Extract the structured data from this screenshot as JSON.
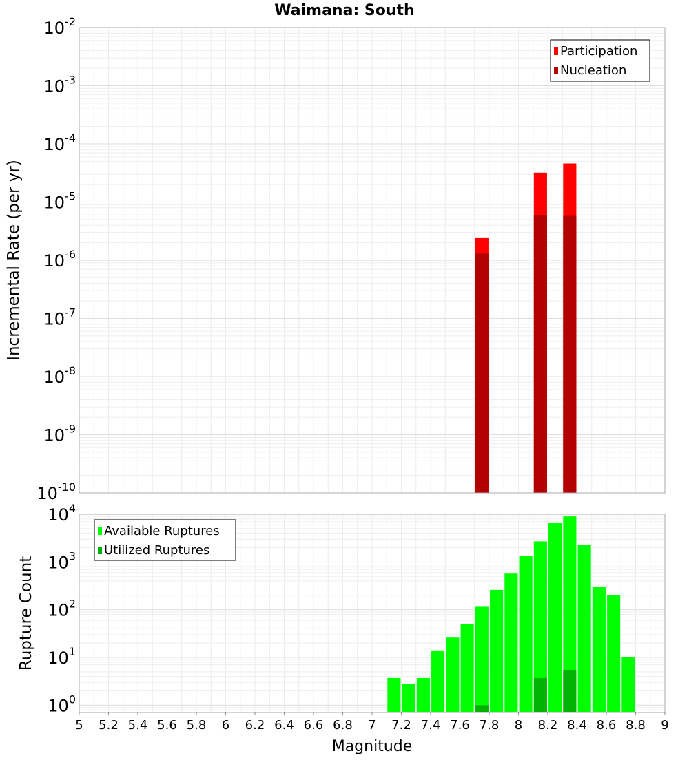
{
  "chart_data": [
    {
      "type": "bar",
      "title": "Waimana: South",
      "xlabel": "",
      "ylabel": "Incremental Rate (per yr)",
      "xlim": [
        5,
        9
      ],
      "ylim": [
        1e-10,
        0.01
      ],
      "yscale": "log",
      "grid": true,
      "legend_position": "top-right",
      "y_tick_exponents": [
        "-2",
        "-3",
        "-4",
        "-5",
        "-6",
        "-7",
        "-8",
        "-9",
        "-10"
      ],
      "series": [
        {
          "name": "Participation",
          "color": "#ff0000",
          "x": [
            7.75,
            8.15,
            8.35
          ],
          "values": [
            2.4e-06,
            3.2e-05,
            4.6e-05
          ]
        },
        {
          "name": "Nucleation",
          "color": "#b30000",
          "x": [
            7.75,
            8.15,
            8.35
          ],
          "values": [
            1.3e-06,
            6e-06,
            5.8e-06
          ]
        }
      ]
    },
    {
      "type": "bar",
      "title": "",
      "xlabel": "Magnitude",
      "ylabel": "Rupture Count",
      "xlim": [
        5,
        9
      ],
      "ylim": [
        0.7,
        10000
      ],
      "yscale": "log",
      "grid": true,
      "legend_position": "top-left",
      "y_tick_exponents": [
        "4",
        "3",
        "2",
        "1",
        "0"
      ],
      "x_ticks": [
        "5",
        "5.2",
        "5.4",
        "5.6",
        "5.8",
        "6",
        "6.2",
        "6.4",
        "6.6",
        "6.8",
        "7",
        "7.2",
        "7.4",
        "7.6",
        "7.8",
        "8",
        "8.2",
        "8.4",
        "8.6",
        "8.8",
        "9"
      ],
      "series": [
        {
          "name": "Available Ruptures",
          "color": "#00ff00",
          "x": [
            7.15,
            7.25,
            7.35,
            7.45,
            7.55,
            7.65,
            7.75,
            7.85,
            7.95,
            8.05,
            8.15,
            8.25,
            8.35,
            8.45,
            8.55,
            8.65,
            8.75
          ],
          "values": [
            3.7,
            2.8,
            3.7,
            14,
            26,
            50,
            115,
            260,
            570,
            1350,
            2700,
            6500,
            9000,
            2300,
            300,
            205,
            10
          ]
        },
        {
          "name": "Utilized Ruptures",
          "color": "#00b300",
          "x": [
            7.75,
            8.15,
            8.35
          ],
          "values": [
            1,
            3.7,
            5.5
          ]
        }
      ]
    }
  ]
}
